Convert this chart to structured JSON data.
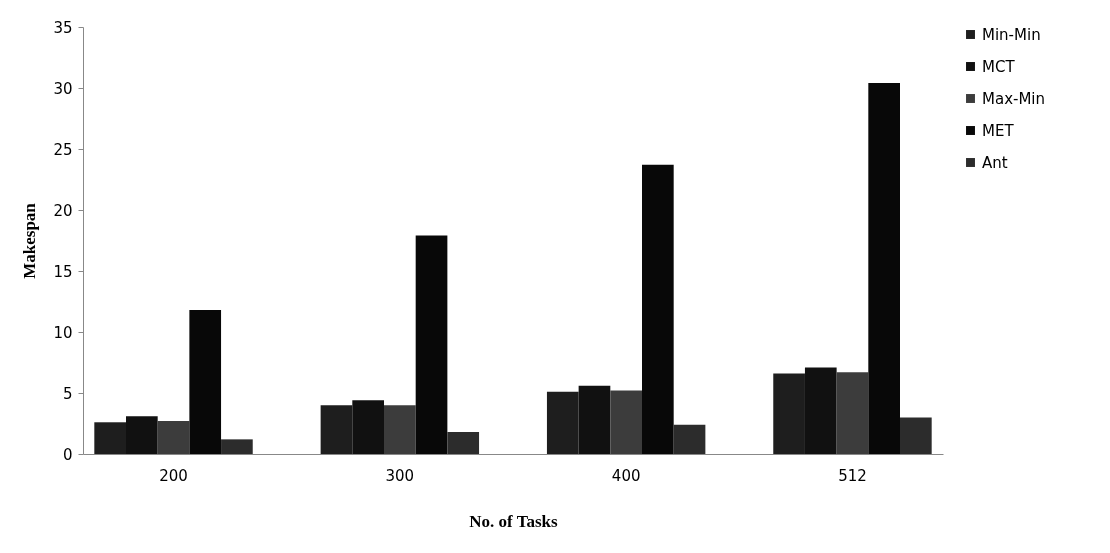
{
  "chart_data": {
    "type": "bar",
    "xlabel": "No. of Tasks",
    "ylabel": "Makespan",
    "categories": [
      "200",
      "300",
      "400",
      "512"
    ],
    "series": [
      {
        "name": "Min-Min",
        "color": "#1e1e1e",
        "values": [
          2.6,
          4.0,
          5.1,
          6.6
        ]
      },
      {
        "name": "MCT",
        "color": "#111111",
        "values": [
          3.1,
          4.4,
          5.6,
          7.1
        ]
      },
      {
        "name": "Max-Min",
        "color": "#3c3c3c",
        "values": [
          2.7,
          4.0,
          5.2,
          6.7
        ]
      },
      {
        "name": "MET",
        "color": "#080808",
        "values": [
          11.8,
          17.9,
          23.7,
          30.4
        ]
      },
      {
        "name": "Ant",
        "color": "#2c2c2c",
        "values": [
          1.2,
          1.8,
          2.4,
          3.0
        ]
      }
    ],
    "ylim": [
      0,
      35
    ],
    "yticks": [
      0,
      5,
      10,
      15,
      20,
      25,
      30,
      35
    ],
    "grid": false,
    "legend": "right"
  }
}
